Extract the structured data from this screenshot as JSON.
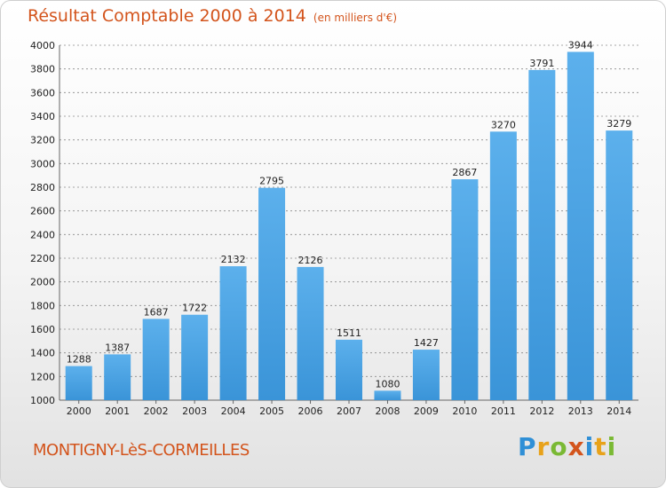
{
  "header": {
    "title": "Résultat Comptable 2000 à 2014",
    "unit": "(en milliers d'€)"
  },
  "footer": {
    "commune": "MONTIGNY-LèS-CORMEILLES",
    "logo_letters": [
      {
        "ch": "P",
        "color": "#2f8fd6"
      },
      {
        "ch": "r",
        "color": "#e8a21a"
      },
      {
        "ch": "o",
        "color": "#7ab934"
      },
      {
        "ch": "x",
        "color": "#d3541c"
      },
      {
        "ch": "i",
        "color": "#2f8fd6"
      },
      {
        "ch": "t",
        "color": "#e8a21a"
      },
      {
        "ch": "i",
        "color": "#7ab934"
      }
    ]
  },
  "colors": {
    "bar": "#3a94d8",
    "bar_light": "#5cb0ec",
    "grid": "#8a8a8a",
    "title": "#d3541c"
  },
  "chart_data": {
    "type": "bar",
    "title": "Résultat Comptable 2000 à 2014",
    "subtitle": "(en milliers d'€)",
    "xlabel": "",
    "ylabel": "",
    "ylim": [
      1000,
      4000
    ],
    "yticks": [
      1000,
      1200,
      1400,
      1600,
      1800,
      2000,
      2200,
      2400,
      2600,
      2800,
      3000,
      3200,
      3400,
      3600,
      3800,
      4000
    ],
    "grid": true,
    "categories": [
      "2000",
      "2001",
      "2002",
      "2003",
      "2004",
      "2005",
      "2006",
      "2007",
      "2008",
      "2009",
      "2010",
      "2011",
      "2012",
      "2013",
      "2014"
    ],
    "values": [
      1288,
      1387,
      1687,
      1722,
      2132,
      2795,
      2126,
      1511,
      1080,
      1427,
      2867,
      3270,
      3791,
      3944,
      3279
    ]
  }
}
